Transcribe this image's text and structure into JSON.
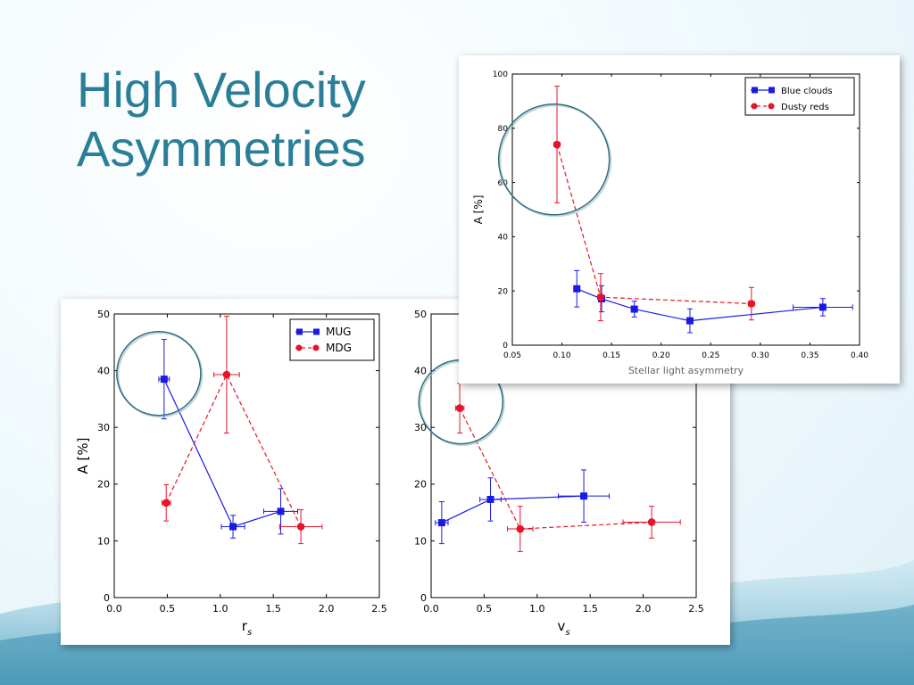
{
  "slide": {
    "title_line1": "High Velocity",
    "title_line2": "Asymmetries"
  },
  "colors": {
    "title": "#2a7e98",
    "blue": "#1a1ae6",
    "red": "#e6142a",
    "circle": "#2e6e82"
  },
  "chart_data": [
    {
      "id": "rs",
      "type": "line",
      "xlabel": "r",
      "xlabel_sub": "s",
      "ylabel": "A [%]",
      "xlim": [
        0.0,
        2.5
      ],
      "ylim": [
        0,
        50
      ],
      "xticks": [
        "0.0",
        "0.5",
        "1.0",
        "1.5",
        "2.0",
        "2.5"
      ],
      "yticks": [
        "0",
        "10",
        "20",
        "30",
        "40",
        "50"
      ],
      "legend_position": "top-right",
      "series": [
        {
          "name": "MUG",
          "color": "blue",
          "marker": "square",
          "dash": "solid",
          "x": [
            0.47,
            1.12,
            1.57
          ],
          "y": [
            38.5,
            12.5,
            15.2
          ],
          "xerr": [
            0.05,
            0.11,
            0.16
          ],
          "yerr": [
            7.0,
            2.0,
            4.0
          ]
        },
        {
          "name": "MDG",
          "color": "red",
          "marker": "circle",
          "dash": "dashed",
          "x": [
            0.49,
            1.06,
            1.76
          ],
          "y": [
            16.7,
            39.3,
            12.5
          ],
          "xerr": [
            0.04,
            0.12,
            0.2
          ],
          "yerr": [
            3.2,
            10.3,
            3.0
          ]
        }
      ],
      "highlight_point": {
        "x": 0.42,
        "y": 39.5
      }
    },
    {
      "id": "vs",
      "type": "line",
      "xlabel": "v",
      "xlabel_sub": "s",
      "ylabel": "",
      "xlim": [
        0.0,
        2.5
      ],
      "ylim": [
        0,
        50
      ],
      "xticks": [
        "0.0",
        "0.5",
        "1.0",
        "1.5",
        "2.0",
        "2.5"
      ],
      "yticks": [
        "0",
        "10",
        "20",
        "30",
        "40",
        "50"
      ],
      "series": [
        {
          "name": "",
          "color": "blue",
          "marker": "square",
          "dash": "solid",
          "x": [
            0.1,
            0.56,
            1.44
          ],
          "y": [
            13.2,
            17.3,
            17.9
          ],
          "xerr": [
            0.06,
            0.1,
            0.24
          ],
          "yerr": [
            3.7,
            3.8,
            4.6
          ]
        },
        {
          "name": "",
          "color": "red",
          "marker": "circle",
          "dash": "dashed",
          "x": [
            0.27,
            0.84,
            2.08
          ],
          "y": [
            33.4,
            12.1,
            13.3
          ],
          "xerr": [
            0.04,
            0.12,
            0.27
          ],
          "yerr": [
            4.4,
            4.0,
            2.8
          ]
        }
      ],
      "highlight_point": {
        "x": 0.28,
        "y": 34.5
      }
    },
    {
      "id": "stellar",
      "type": "line",
      "xlabel": "Stellar light asymmetry",
      "ylabel": "A [%]",
      "xlim": [
        0.05,
        0.4
      ],
      "ylim": [
        0,
        100
      ],
      "xticks": [
        "0.05",
        "0.10",
        "0.15",
        "0.20",
        "0.25",
        "0.30",
        "0.35",
        "0.40"
      ],
      "yticks": [
        "0",
        "20",
        "40",
        "60",
        "80",
        "100"
      ],
      "legend_position": "top-right",
      "series": [
        {
          "name": "Blue clouds",
          "color": "blue",
          "marker": "square",
          "dash": "solid",
          "x": [
            0.115,
            0.14,
            0.173,
            0.229,
            0.363
          ],
          "y": [
            20.8,
            17.1,
            13.3,
            9.0,
            14.0
          ],
          "xerr": [
            0.0,
            0.003,
            0.003,
            0.003,
            0.03
          ],
          "yerr": [
            6.7,
            4.8,
            2.9,
            4.4,
            3.2
          ]
        },
        {
          "name": "Dusty reds",
          "color": "red",
          "marker": "circle",
          "dash": "dashed",
          "x": [
            0.095,
            0.139,
            0.291
          ],
          "y": [
            74.0,
            17.7,
            15.3
          ],
          "xerr": [
            0.003,
            0.003,
            0.003
          ],
          "yerr": [
            21.5,
            8.7,
            6.0
          ]
        }
      ],
      "highlight_point": {
        "x": 0.092,
        "y": 68.5
      }
    }
  ]
}
